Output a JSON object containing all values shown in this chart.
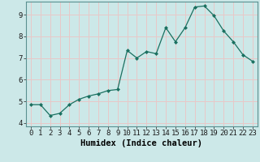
{
  "x": [
    0,
    1,
    2,
    3,
    4,
    5,
    6,
    7,
    8,
    9,
    10,
    11,
    12,
    13,
    14,
    15,
    16,
    17,
    18,
    19,
    20,
    21,
    22,
    23
  ],
  "y": [
    4.85,
    4.85,
    4.35,
    4.45,
    4.85,
    5.1,
    5.25,
    5.35,
    5.5,
    5.55,
    7.35,
    7.0,
    7.3,
    7.2,
    8.4,
    7.75,
    8.4,
    9.35,
    9.4,
    8.95,
    8.25,
    7.75,
    7.15,
    6.85
  ],
  "line_color": "#1a7060",
  "marker": "D",
  "marker_size": 2.0,
  "bg_color": "#cce8e8",
  "grid_color": "#e8c8c8",
  "xlabel": "Humidex (Indice chaleur)",
  "xlim": [
    -0.5,
    23.5
  ],
  "ylim": [
    3.85,
    9.6
  ],
  "yticks": [
    4,
    5,
    6,
    7,
    8,
    9
  ],
  "xticks": [
    0,
    1,
    2,
    3,
    4,
    5,
    6,
    7,
    8,
    9,
    10,
    11,
    12,
    13,
    14,
    15,
    16,
    17,
    18,
    19,
    20,
    21,
    22,
    23
  ],
  "tick_fontsize": 6.5,
  "xlabel_fontsize": 7.5
}
